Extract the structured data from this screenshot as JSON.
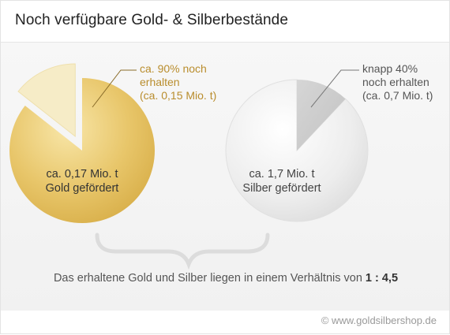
{
  "title": "Noch verfügbare Gold- & Silberbestände",
  "chart_data": [
    {
      "type": "pie",
      "name": "Gold",
      "slices": [
        {
          "label": "Gold gefördert",
          "value": 0.17
        },
        {
          "label": "noch erhalten",
          "value": 0.15
        }
      ],
      "retained_percent": 90,
      "center_label": [
        "ca. 0,17 Mio. t",
        "Gold gefördert"
      ],
      "callout": [
        "ca. 90% noch",
        "erhalten",
        "(ca. 0,15 Mio. t)"
      ],
      "colors": {
        "pie": "#e3c265",
        "pie_light": "#f7e7b5",
        "slice": "#f6ecc7",
        "text": "#333333",
        "callout": "#b98d2d"
      }
    },
    {
      "type": "pie",
      "name": "Silber",
      "slices": [
        {
          "label": "Silber gefördert",
          "value": 1.7
        },
        {
          "label": "noch erhalten",
          "value": 0.7
        }
      ],
      "retained_percent": 40,
      "center_label": [
        "ca. 1,7 Mio. t",
        "Silber gefördert"
      ],
      "callout": [
        "knapp 40%",
        "noch erhalten",
        "(ca. 0,7 Mio. t)"
      ],
      "colors": {
        "pie": "#eaeaea",
        "pie_light": "#fafafa",
        "slice": "#cfcfcf",
        "text": "#444444",
        "callout": "#555555"
      }
    }
  ],
  "conclusion": {
    "text": "Das erhaltene Gold und Silber liegen in einem Verhältnis von",
    "ratio": "1 : 4,5"
  },
  "copyright": "© www.goldsilbershop.de"
}
